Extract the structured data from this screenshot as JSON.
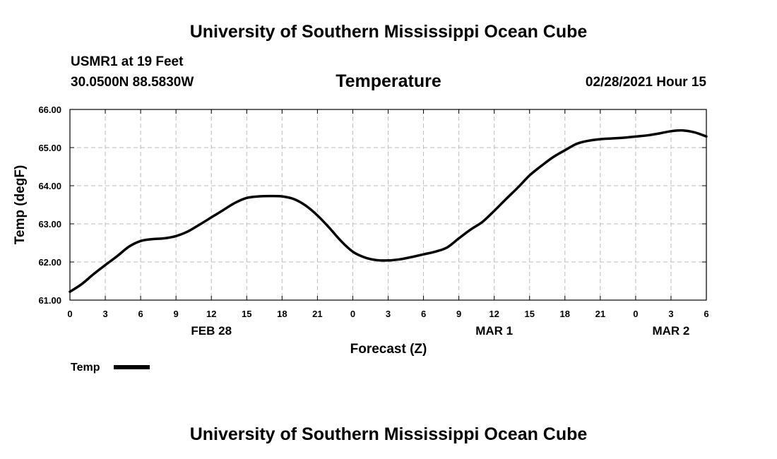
{
  "header": {
    "title_top": "University of Southern Mississippi Ocean Cube",
    "station": "USMR1 at 19 Feet",
    "coords": "30.0500N 88.5830W",
    "variable": "Temperature",
    "timestamp": "02/28/2021 Hour 15"
  },
  "footer": {
    "title_bottom": "University of Southern Mississippi Ocean Cube"
  },
  "legend": {
    "label": "Temp",
    "color": "#000000"
  },
  "chart_data": {
    "type": "line",
    "title": "Temperature",
    "xlabel": "Forecast (Z)",
    "ylabel": "Temp (degF)",
    "xlim": [
      0,
      54
    ],
    "ylim": [
      61.0,
      66.0
    ],
    "grid": true,
    "x_tick_values": [
      0,
      3,
      6,
      9,
      12,
      15,
      18,
      21,
      24,
      27,
      30,
      33,
      36,
      39,
      42,
      45,
      48,
      51,
      54
    ],
    "x_tick_labels": [
      "0",
      "3",
      "6",
      "9",
      "12",
      "15",
      "18",
      "21",
      "0",
      "3",
      "6",
      "9",
      "12",
      "15",
      "18",
      "21",
      "0",
      "3",
      "6"
    ],
    "y_tick_values": [
      61.0,
      62.0,
      63.0,
      64.0,
      65.0,
      66.0
    ],
    "y_tick_labels": [
      "61.00",
      "62.00",
      "63.00",
      "64.00",
      "65.00",
      "66.00"
    ],
    "date_labels": [
      {
        "x": 12,
        "label": "FEB 28"
      },
      {
        "x": 36,
        "label": "MAR 1"
      },
      {
        "x": 51,
        "label": "MAR 2"
      }
    ],
    "series": [
      {
        "name": "Temp",
        "color": "#000000",
        "x": [
          0,
          1,
          2,
          3,
          4,
          5,
          6,
          7,
          8,
          9,
          10,
          11,
          12,
          13,
          14,
          15,
          16,
          17,
          18,
          19,
          20,
          21,
          22,
          23,
          24,
          25,
          26,
          27,
          28,
          29,
          30,
          31,
          32,
          33,
          34,
          35,
          36,
          37,
          38,
          39,
          40,
          41,
          42,
          43,
          44,
          45,
          46,
          47,
          48,
          49,
          50,
          51,
          52,
          53,
          54
        ],
        "values": [
          61.22,
          61.42,
          61.68,
          61.92,
          62.15,
          62.4,
          62.55,
          62.6,
          62.62,
          62.68,
          62.8,
          62.98,
          63.17,
          63.36,
          63.55,
          63.68,
          63.72,
          63.73,
          63.72,
          63.65,
          63.48,
          63.22,
          62.9,
          62.55,
          62.27,
          62.12,
          62.05,
          62.04,
          62.07,
          62.13,
          62.2,
          62.27,
          62.38,
          62.62,
          62.85,
          63.05,
          63.34,
          63.65,
          63.95,
          64.27,
          64.52,
          64.75,
          64.93,
          65.1,
          65.18,
          65.22,
          65.24,
          65.26,
          65.29,
          65.32,
          65.37,
          65.43,
          65.45,
          65.4,
          65.29
        ]
      }
    ]
  }
}
